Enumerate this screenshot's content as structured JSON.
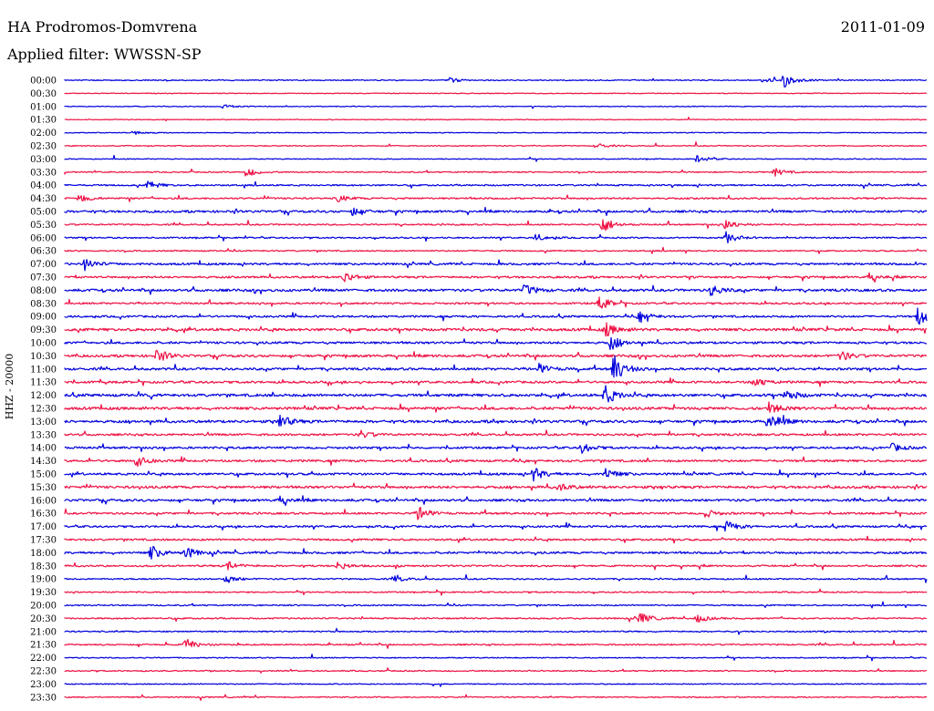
{
  "header": {
    "station": "HA Prodromos-Domvrena",
    "filter": "Applied filter: WWSSN-SP",
    "date": "2011-01-09"
  },
  "channel_label": "HHZ - 20000",
  "colors": {
    "even_trace": "#0000dd",
    "odd_trace": "#ee1144",
    "text": "#000000",
    "background": "#ffffff"
  },
  "chart_data": {
    "type": "line",
    "title": "HA Prodromos-Domvrena",
    "subtitle": "Applied filter: WWSSN-SP",
    "date": "2011-01-09",
    "ylabel": "HHZ - 20000",
    "trace_interval_minutes": 30,
    "row_labels": [
      "00:00",
      "00:30",
      "01:00",
      "01:30",
      "02:00",
      "02:30",
      "03:00",
      "03:30",
      "04:00",
      "04:30",
      "05:00",
      "05:30",
      "06:00",
      "06:30",
      "07:00",
      "07:30",
      "08:00",
      "08:30",
      "09:00",
      "09:30",
      "10:00",
      "10:30",
      "11:00",
      "11:30",
      "12:00",
      "12:30",
      "13:00",
      "13:30",
      "14:00",
      "14:30",
      "15:00",
      "15:30",
      "16:00",
      "16:30",
      "17:00",
      "17:30",
      "18:00",
      "18:30",
      "19:00",
      "19:30",
      "20:00",
      "20:30",
      "21:00",
      "21:30",
      "22:00",
      "22:30",
      "23:00",
      "23:30"
    ],
    "row_colors": [
      "blue",
      "red"
    ],
    "activity_level": [
      0.15,
      0.05,
      0.05,
      0.02,
      0.05,
      0.1,
      0.1,
      0.2,
      0.35,
      0.4,
      0.6,
      0.3,
      0.3,
      0.25,
      0.55,
      0.5,
      0.7,
      0.45,
      0.5,
      0.8,
      0.6,
      0.7,
      0.65,
      0.6,
      0.8,
      0.8,
      0.75,
      0.55,
      0.55,
      0.6,
      0.6,
      0.7,
      0.65,
      0.5,
      0.5,
      0.5,
      0.55,
      0.4,
      0.3,
      0.25,
      0.25,
      0.3,
      0.25,
      0.3,
      0.15,
      0.2,
      0.15,
      0.2
    ],
    "events": [
      {
        "row": 0,
        "minute": 25.0,
        "amplitude": 0.8
      },
      {
        "row": 0,
        "minute": 24.3,
        "amplitude": 0.25
      },
      {
        "row": 0,
        "minute": 13.4,
        "amplitude": 0.25
      },
      {
        "row": 2,
        "minute": 5.5,
        "amplitude": 0.2
      },
      {
        "row": 4,
        "minute": 2.4,
        "amplitude": 0.2
      },
      {
        "row": 5,
        "minute": 18.5,
        "amplitude": 0.3
      },
      {
        "row": 6,
        "minute": 22.0,
        "amplitude": 0.35
      },
      {
        "row": 7,
        "minute": 6.3,
        "amplitude": 0.5
      },
      {
        "row": 7,
        "minute": 24.7,
        "amplitude": 0.4
      },
      {
        "row": 8,
        "minute": 2.9,
        "amplitude": 0.4
      },
      {
        "row": 9,
        "minute": 0.5,
        "amplitude": 0.4
      },
      {
        "row": 9,
        "minute": 9.5,
        "amplitude": 0.35
      },
      {
        "row": 10,
        "minute": 10.0,
        "amplitude": 0.4
      },
      {
        "row": 11,
        "minute": 18.7,
        "amplitude": 0.9
      },
      {
        "row": 11,
        "minute": 23.0,
        "amplitude": 0.6
      },
      {
        "row": 12,
        "minute": 23.0,
        "amplitude": 0.6
      },
      {
        "row": 12,
        "minute": 16.4,
        "amplitude": 0.35
      },
      {
        "row": 14,
        "minute": 0.7,
        "amplitude": 0.6
      },
      {
        "row": 15,
        "minute": 9.7,
        "amplitude": 0.6
      },
      {
        "row": 15,
        "minute": 28.0,
        "amplitude": 0.4
      },
      {
        "row": 16,
        "minute": 16.0,
        "amplitude": 0.6
      },
      {
        "row": 16,
        "minute": 22.5,
        "amplitude": 0.6
      },
      {
        "row": 17,
        "minute": 18.6,
        "amplitude": 0.7
      },
      {
        "row": 18,
        "minute": 29.7,
        "amplitude": 1.0
      },
      {
        "row": 18,
        "minute": 20.0,
        "amplitude": 0.6
      },
      {
        "row": 19,
        "minute": 18.8,
        "amplitude": 0.7
      },
      {
        "row": 20,
        "minute": 19.0,
        "amplitude": 0.7
      },
      {
        "row": 21,
        "minute": 3.2,
        "amplitude": 0.6
      },
      {
        "row": 21,
        "minute": 27.0,
        "amplitude": 0.5
      },
      {
        "row": 22,
        "minute": 19.1,
        "amplitude": 1.5
      },
      {
        "row": 22,
        "minute": 16.5,
        "amplitude": 0.5
      },
      {
        "row": 23,
        "minute": 24.0,
        "amplitude": 0.5
      },
      {
        "row": 24,
        "minute": 18.8,
        "amplitude": 1.0
      },
      {
        "row": 24,
        "minute": 25.1,
        "amplitude": 0.6
      },
      {
        "row": 25,
        "minute": 24.5,
        "amplitude": 0.6
      },
      {
        "row": 26,
        "minute": 7.5,
        "amplitude": 0.6
      },
      {
        "row": 26,
        "minute": 24.5,
        "amplitude": 1.0
      },
      {
        "row": 27,
        "minute": 10.3,
        "amplitude": 0.4
      },
      {
        "row": 28,
        "minute": 18.0,
        "amplitude": 0.5
      },
      {
        "row": 28,
        "minute": 28.8,
        "amplitude": 0.4
      },
      {
        "row": 29,
        "minute": 2.5,
        "amplitude": 0.5
      },
      {
        "row": 30,
        "minute": 16.3,
        "amplitude": 0.7
      },
      {
        "row": 30,
        "minute": 18.8,
        "amplitude": 0.6
      },
      {
        "row": 31,
        "minute": 17.2,
        "amplitude": 0.4
      },
      {
        "row": 32,
        "minute": 7.5,
        "amplitude": 0.4
      },
      {
        "row": 33,
        "minute": 12.3,
        "amplitude": 0.7
      },
      {
        "row": 33,
        "minute": 22.3,
        "amplitude": 0.4
      },
      {
        "row": 34,
        "minute": 23.0,
        "amplitude": 0.6
      },
      {
        "row": 36,
        "minute": 3.0,
        "amplitude": 0.7
      },
      {
        "row": 36,
        "minute": 4.2,
        "amplitude": 0.6
      },
      {
        "row": 37,
        "minute": 5.7,
        "amplitude": 0.4
      },
      {
        "row": 37,
        "minute": 9.5,
        "amplitude": 0.4
      },
      {
        "row": 38,
        "minute": 5.6,
        "amplitude": 0.4
      },
      {
        "row": 38,
        "minute": 11.5,
        "amplitude": 0.3
      },
      {
        "row": 41,
        "minute": 20.0,
        "amplitude": 0.6
      },
      {
        "row": 41,
        "minute": 22.0,
        "amplitude": 0.4
      },
      {
        "row": 43,
        "minute": 4.2,
        "amplitude": 0.6
      }
    ]
  }
}
